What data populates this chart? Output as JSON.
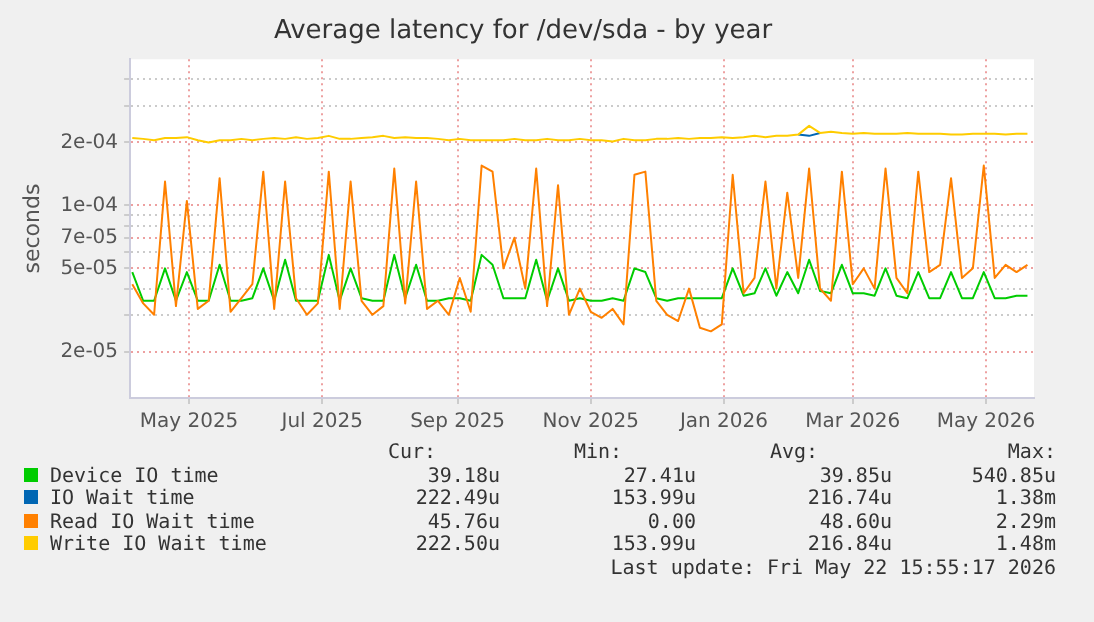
{
  "chart_data": {
    "type": "line",
    "title": "Average latency for /dev/sda - by year",
    "ylabel": "seconds",
    "log": "y",
    "grid": true,
    "legend": "bottom",
    "marker": "none",
    "line_style": "solid",
    "xlim": [
      "2025-04-04",
      "2026-05-23"
    ],
    "xticks": [
      {
        "value": "2025-05-01",
        "label": "May 2025"
      },
      {
        "value": "2025-07-01",
        "label": "Jul 2025"
      },
      {
        "value": "2025-09-01",
        "label": "Sep 2025"
      },
      {
        "value": "2025-11-01",
        "label": "Nov 2025"
      },
      {
        "value": "2026-01-01",
        "label": "Jan 2026"
      },
      {
        "value": "2026-03-01",
        "label": "Mar 2026"
      },
      {
        "value": "2026-05-01",
        "label": "May 2026"
      }
    ],
    "ylim": [
      1.2e-05,
      0.0005
    ],
    "yticks": [
      {
        "value": 2e-05,
        "label": "2e-05"
      },
      {
        "value": 3e-05,
        "label": null
      },
      {
        "value": 4e-05,
        "label": null
      },
      {
        "value": 5e-05,
        "label": "5e-05"
      },
      {
        "value": 6e-05,
        "label": null
      },
      {
        "value": 7e-05,
        "label": "7e-05"
      },
      {
        "value": 8e-05,
        "label": null
      },
      {
        "value": 9e-05,
        "label": null
      },
      {
        "value": 0.0001,
        "label": "1e-04"
      },
      {
        "value": 0.0002,
        "label": "2e-04"
      },
      {
        "value": 0.0003,
        "label": null
      },
      {
        "value": 0.0004,
        "label": null
      }
    ],
    "x": [
      "2025-04-05",
      "2025-04-10",
      "2025-04-15",
      "2025-04-20",
      "2025-04-25",
      "2025-04-30",
      "2025-05-05",
      "2025-05-10",
      "2025-05-15",
      "2025-05-20",
      "2025-05-25",
      "2025-05-30",
      "2025-06-04",
      "2025-06-09",
      "2025-06-14",
      "2025-06-19",
      "2025-06-24",
      "2025-06-29",
      "2025-07-04",
      "2025-07-09",
      "2025-07-14",
      "2025-07-19",
      "2025-07-24",
      "2025-07-29",
      "2025-08-03",
      "2025-08-08",
      "2025-08-13",
      "2025-08-18",
      "2025-08-23",
      "2025-08-28",
      "2025-09-02",
      "2025-09-07",
      "2025-09-12",
      "2025-09-17",
      "2025-09-22",
      "2025-09-27",
      "2025-10-02",
      "2025-10-07",
      "2025-10-12",
      "2025-10-17",
      "2025-10-22",
      "2025-10-27",
      "2025-11-01",
      "2025-11-06",
      "2025-11-11",
      "2025-11-16",
      "2025-11-21",
      "2025-11-26",
      "2025-12-01",
      "2025-12-06",
      "2025-12-11",
      "2025-12-16",
      "2025-12-21",
      "2025-12-26",
      "2025-12-31",
      "2026-01-05",
      "2026-01-10",
      "2026-01-15",
      "2026-01-20",
      "2026-01-25",
      "2026-01-30",
      "2026-02-04",
      "2026-02-09",
      "2026-02-14",
      "2026-02-19",
      "2026-02-24",
      "2026-03-01",
      "2026-03-06",
      "2026-03-11",
      "2026-03-16",
      "2026-03-21",
      "2026-03-26",
      "2026-03-31",
      "2026-04-05",
      "2026-04-10",
      "2026-04-15",
      "2026-04-20",
      "2026-04-25",
      "2026-04-30",
      "2026-05-05",
      "2026-05-10",
      "2026-05-15",
      "2026-05-20"
    ],
    "series": [
      {
        "name": "Device IO time",
        "color": "#00cc00",
        "values": [
          4.8e-05,
          3.5e-05,
          3.5e-05,
          5e-05,
          3.5e-05,
          4.8e-05,
          3.5e-05,
          3.5e-05,
          5.2e-05,
          3.5e-05,
          3.5e-05,
          3.6e-05,
          5e-05,
          3.5e-05,
          5.5e-05,
          3.5e-05,
          3.5e-05,
          3.5e-05,
          5.8e-05,
          3.5e-05,
          5e-05,
          3.6e-05,
          3.5e-05,
          3.5e-05,
          5.8e-05,
          3.6e-05,
          5.2e-05,
          3.5e-05,
          3.5e-05,
          3.6e-05,
          3.6e-05,
          3.5e-05,
          5.8e-05,
          5.2e-05,
          3.6e-05,
          3.6e-05,
          3.6e-05,
          5.5e-05,
          3.5e-05,
          5e-05,
          3.5e-05,
          3.6e-05,
          3.5e-05,
          3.5e-05,
          3.6e-05,
          3.5e-05,
          5e-05,
          4.8e-05,
          3.6e-05,
          3.5e-05,
          3.6e-05,
          3.6e-05,
          3.6e-05,
          3.6e-05,
          3.6e-05,
          5e-05,
          3.7e-05,
          3.8e-05,
          5e-05,
          3.7e-05,
          4.8e-05,
          3.8e-05,
          5.5e-05,
          3.9e-05,
          3.8e-05,
          5.2e-05,
          3.8e-05,
          3.8e-05,
          3.7e-05,
          5e-05,
          3.7e-05,
          3.6e-05,
          4.8e-05,
          3.6e-05,
          3.6e-05,
          4.8e-05,
          3.6e-05,
          3.6e-05,
          4.8e-05,
          3.6e-05,
          3.6e-05,
          3.7e-05,
          3.7e-05
        ]
      },
      {
        "name": "IO Wait time",
        "color": "#0066b3",
        "values": [
          null,
          null,
          null,
          null,
          null,
          null,
          null,
          null,
          null,
          null,
          null,
          null,
          null,
          null,
          null,
          null,
          null,
          null,
          null,
          null,
          null,
          null,
          null,
          null,
          null,
          null,
          null,
          null,
          null,
          null,
          null,
          null,
          null,
          null,
          null,
          null,
          null,
          null,
          null,
          null,
          null,
          null,
          null,
          null,
          null,
          null,
          null,
          null,
          null,
          null,
          null,
          null,
          null,
          null,
          null,
          null,
          null,
          null,
          null,
          null,
          null,
          0.000218,
          0.000215,
          0.000222,
          null,
          null,
          null,
          null,
          null,
          null,
          null,
          null,
          null,
          null,
          null,
          null,
          null,
          null,
          null,
          null,
          null,
          null,
          null
        ]
      },
      {
        "name": "Read IO Wait time",
        "color": "#ff8000",
        "values": [
          4.2e-05,
          3.4e-05,
          3e-05,
          0.00013,
          3.3e-05,
          0.000105,
          3.2e-05,
          3.5e-05,
          0.000135,
          3.1e-05,
          3.6e-05,
          4.2e-05,
          0.000145,
          3.2e-05,
          0.00013,
          3.6e-05,
          3e-05,
          3.4e-05,
          0.000145,
          3.2e-05,
          0.00013,
          3.5e-05,
          3e-05,
          3.3e-05,
          0.00015,
          3.4e-05,
          0.00013,
          3.2e-05,
          3.5e-05,
          3e-05,
          4.5e-05,
          3.1e-05,
          0.000155,
          0.000145,
          5e-05,
          7e-05,
          4e-05,
          0.00015,
          3.3e-05,
          0.000125,
          3e-05,
          4e-05,
          3.1e-05,
          2.9e-05,
          3.2e-05,
          2.7e-05,
          0.00014,
          0.000145,
          3.5e-05,
          3e-05,
          2.8e-05,
          4e-05,
          2.6e-05,
          2.5e-05,
          2.7e-05,
          0.00014,
          3.8e-05,
          4.5e-05,
          0.00013,
          4e-05,
          0.000115,
          4.5e-05,
          0.00015,
          4e-05,
          3.5e-05,
          0.000145,
          4.2e-05,
          5e-05,
          4e-05,
          0.00015,
          4.5e-05,
          3.8e-05,
          0.000145,
          4.8e-05,
          5.2e-05,
          0.000135,
          4.5e-05,
          5e-05,
          0.000155,
          4.5e-05,
          5.2e-05,
          4.8e-05,
          5.2e-05
        ]
      },
      {
        "name": "Write IO Wait time",
        "color": "#ffcc00",
        "values": [
          0.00021,
          0.000208,
          0.000205,
          0.00021,
          0.00021,
          0.000212,
          0.000205,
          0.0002,
          0.000205,
          0.000205,
          0.000208,
          0.000205,
          0.000208,
          0.00021,
          0.000208,
          0.000212,
          0.000208,
          0.00021,
          0.000215,
          0.000208,
          0.000208,
          0.00021,
          0.000212,
          0.000215,
          0.00021,
          0.000212,
          0.00021,
          0.00021,
          0.000208,
          0.000205,
          0.000208,
          0.000205,
          0.000205,
          0.000205,
          0.000205,
          0.000208,
          0.000205,
          0.000205,
          0.000208,
          0.000205,
          0.000205,
          0.000208,
          0.000205,
          0.000205,
          0.000202,
          0.000208,
          0.000205,
          0.000205,
          0.000208,
          0.000208,
          0.00021,
          0.000208,
          0.00021,
          0.00021,
          0.000212,
          0.00021,
          0.000212,
          0.000215,
          0.000212,
          0.000215,
          0.000215,
          0.000218,
          0.00024,
          0.000222,
          0.000225,
          0.000222,
          0.00022,
          0.000222,
          0.00022,
          0.00022,
          0.00022,
          0.000222,
          0.00022,
          0.00022,
          0.00022,
          0.000218,
          0.000218,
          0.00022,
          0.00022,
          0.00022,
          0.000218,
          0.00022,
          0.00022
        ]
      }
    ],
    "annotations": [
      "Cur:",
      "Min:",
      "Avg:",
      "Max:",
      "39.18u",
      "27.41u",
      "39.85u",
      "540.85u",
      "222.49u",
      "153.99u",
      "216.74u",
      "1.38m",
      "45.76u",
      "0.00",
      "48.60u",
      "2.29m",
      "222.50u",
      "153.99u",
      "216.84u",
      "1.48m",
      "Last update: Fri May 22 15:55:17 2026"
    ]
  }
}
